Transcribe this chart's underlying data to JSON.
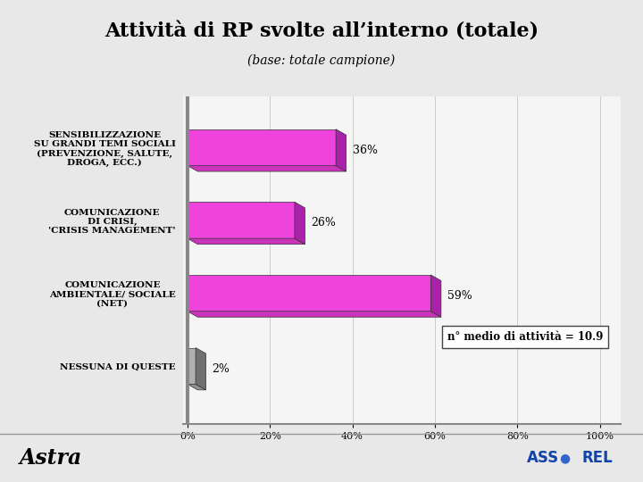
{
  "title": "Attività di RP svolte all’interno (totale)",
  "subtitle": "(base: totale campione)",
  "categories": [
    "SENSIBILIZZAZIONE\nSU GRANDI TEMI SOCIALI\n(PREVENZIONE, SALUTE,\nDROGA, ECC.)",
    "COMUNICAZIONE\nDI CRISI,\n'CRISIS MANAGEMENT'",
    "COMUNICAZIONE\nAMBIENTALE/ SOCIALE\n(NET)",
    "NESSUNA DI QUESTE"
  ],
  "values": [
    36,
    26,
    59,
    2
  ],
  "bar_colors": [
    "#ee44dd",
    "#ee44dd",
    "#ee44dd",
    "#b0b0b0"
  ],
  "bar_top_colors": [
    "#cc33bb",
    "#cc33bb",
    "#cc33bb",
    "#909090"
  ],
  "bar_right_colors": [
    "#aa22aa",
    "#aa22aa",
    "#aa22aa",
    "#707070"
  ],
  "xlim": [
    0,
    100
  ],
  "xticks": [
    0,
    20,
    40,
    60,
    80,
    100
  ],
  "xticklabels": [
    "0%",
    "20%",
    "40%",
    "60%",
    "80%",
    "100%"
  ],
  "annotation_text": "n° medio di attività = 10.9",
  "background_color": "#e8e8e8",
  "plot_bg_color": "#f5f5f5",
  "title_fontsize": 16,
  "subtitle_fontsize": 10,
  "label_fontsize": 7.5,
  "value_fontsize": 9,
  "footer_left": "Astra",
  "footer_right": "ASS●REL",
  "header_bg": "#d8d8d8",
  "footer_bg": "#ffffff"
}
